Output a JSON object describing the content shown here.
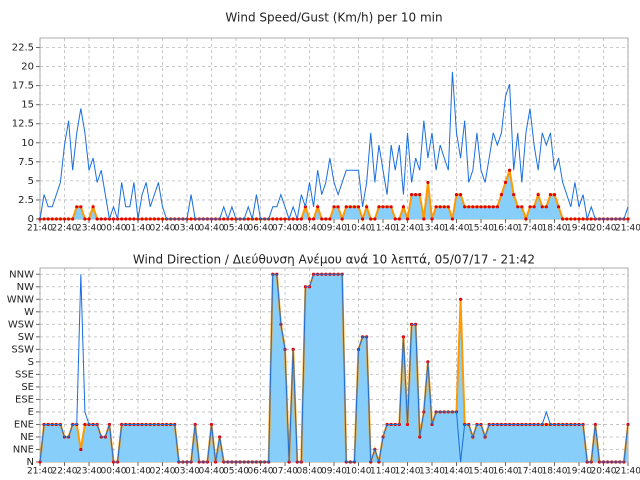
{
  "chart_data": [
    {
      "type": "line",
      "title": "Wind Speed/Gust (Km/h) per 10 min",
      "categories": [
        "21:40",
        null,
        null,
        null,
        null,
        null,
        "22:40",
        null,
        null,
        null,
        null,
        null,
        "23:40",
        null,
        null,
        null,
        null,
        null,
        "00:40",
        null,
        null,
        null,
        null,
        null,
        "01:40",
        null,
        null,
        null,
        null,
        null,
        "02:40",
        null,
        null,
        null,
        null,
        null,
        "03:40",
        null,
        null,
        null,
        null,
        null,
        "04:40",
        null,
        null,
        null,
        null,
        null,
        "05:40",
        null,
        null,
        null,
        null,
        null,
        "06:40",
        null,
        null,
        null,
        null,
        null,
        "07:40",
        null,
        null,
        null,
        null,
        null,
        "08:40",
        null,
        null,
        null,
        null,
        null,
        "09:40",
        null,
        null,
        null,
        null,
        null,
        "10:40",
        null,
        null,
        null,
        null,
        null,
        "11:40",
        null,
        null,
        null,
        null,
        null,
        "12:40",
        null,
        null,
        null,
        null,
        null,
        "13:40",
        null,
        null,
        null,
        null,
        null,
        "14:40",
        null,
        null,
        null,
        null,
        null,
        "15:40",
        null,
        null,
        null,
        null,
        null,
        "16:40",
        null,
        null,
        null,
        null,
        null,
        "17:40",
        null,
        null,
        null,
        null,
        null,
        "18:40",
        null,
        null,
        null,
        null,
        null,
        "19:40",
        null,
        null,
        null,
        null,
        null,
        "20:40",
        null,
        null,
        null,
        null,
        null,
        "21:40"
      ],
      "series": [
        {
          "color": "#ff9900",
          "fill_color": "#87cefa",
          "marker_color": "#e00000",
          "values": [
            0,
            0,
            0,
            0,
            0,
            0,
            0,
            0,
            0,
            1.6,
            1.6,
            0,
            0,
            1.6,
            0,
            0,
            0,
            0,
            0,
            0,
            0,
            0,
            0,
            0,
            0,
            0,
            0,
            0,
            0,
            0,
            0,
            0,
            0,
            0,
            0,
            0,
            0,
            0,
            0,
            0,
            0,
            0,
            0,
            0,
            0,
            0,
            0,
            0,
            0,
            0,
            0,
            0,
            0,
            0,
            0,
            0,
            0,
            0,
            0,
            0,
            0,
            0,
            0,
            0,
            0,
            1.6,
            0,
            0,
            1.6,
            0,
            0,
            0,
            1.6,
            1.6,
            0,
            1.6,
            1.6,
            1.6,
            1.6,
            0,
            1.6,
            0,
            0,
            1.6,
            1.6,
            1.6,
            1.6,
            0,
            0,
            1.6,
            0,
            3.2,
            3.2,
            3.2,
            0,
            4.8,
            0,
            1.6,
            1.6,
            1.6,
            1.6,
            0,
            3.2,
            3.2,
            1.6,
            1.6,
            1.6,
            1.6,
            1.6,
            1.6,
            1.6,
            1.6,
            1.6,
            3.2,
            4.8,
            6.4,
            3.2,
            1.6,
            1.6,
            0,
            1.6,
            1.6,
            3.2,
            1.6,
            1.6,
            3.2,
            3.2,
            1.6,
            0,
            0,
            0,
            0,
            0,
            0,
            0,
            0,
            0,
            0,
            0,
            0,
            0,
            0,
            0,
            0,
            0
          ]
        },
        {
          "color": "#1a6fdf",
          "values": [
            0,
            3.2,
            1.6,
            1.6,
            3.2,
            4.8,
            9.7,
            12.9,
            6.4,
            11.3,
            14.5,
            11.3,
            6.4,
            8,
            4.8,
            6.4,
            3.2,
            0,
            1.6,
            0,
            4.8,
            1.6,
            1.6,
            4.8,
            0,
            3.2,
            4.8,
            1.6,
            3.2,
            4.8,
            1.6,
            0,
            0,
            0,
            0,
            0,
            0,
            3.2,
            0,
            0,
            0,
            0,
            0,
            0,
            0,
            1.6,
            0,
            1.6,
            0,
            0,
            0,
            1.6,
            0,
            3.2,
            0,
            0,
            0,
            1.6,
            1.6,
            3.2,
            1.6,
            0,
            1.6,
            0,
            3.2,
            1.6,
            4.8,
            1.6,
            6.4,
            3.2,
            4.8,
            8,
            4.8,
            3.2,
            4.8,
            6.4,
            6.4,
            6.4,
            6.4,
            1.6,
            4.8,
            11.3,
            4.8,
            9.7,
            6.4,
            3.2,
            9.7,
            6.4,
            9.7,
            3.2,
            11.3,
            4.8,
            8,
            6.4,
            12.9,
            8,
            11.3,
            6.4,
            9.7,
            8,
            6.4,
            19.3,
            11.3,
            8,
            12.9,
            4.8,
            6.4,
            11.3,
            6.4,
            4.8,
            8,
            11.3,
            9.7,
            11.3,
            16.1,
            17.7,
            6.4,
            11.3,
            4.8,
            11.3,
            14.5,
            9.7,
            6.4,
            11.3,
            9.7,
            11.3,
            6.4,
            8,
            4.8,
            3.2,
            1.6,
            4.8,
            1.6,
            3.2,
            0,
            1.6,
            0,
            0,
            0,
            0,
            0,
            0,
            0,
            0,
            1.6
          ]
        }
      ],
      "ylim": [
        0,
        23.75
      ],
      "yticks": [
        0,
        2.5,
        5,
        7.5,
        10,
        12.5,
        15,
        17.5,
        20,
        22.5
      ],
      "grid": true
    },
    {
      "type": "line",
      "title": "Wind Direction / Διεύθυνση Ανέμου ανά 10 λεπτά,  05/07/17 - 21:42",
      "categories": [
        "21:40",
        null,
        null,
        null,
        null,
        null,
        "22:40",
        null,
        null,
        null,
        null,
        null,
        "23:40",
        null,
        null,
        null,
        null,
        null,
        "00:40",
        null,
        null,
        null,
        null,
        null,
        "01:40",
        null,
        null,
        null,
        null,
        null,
        "02:40",
        null,
        null,
        null,
        null,
        null,
        "03:40",
        null,
        null,
        null,
        null,
        null,
        "04:40",
        null,
        null,
        null,
        null,
        null,
        "05:40",
        null,
        null,
        null,
        null,
        null,
        "06:40",
        null,
        null,
        null,
        null,
        null,
        "07:40",
        null,
        null,
        null,
        null,
        null,
        "08:40",
        null,
        null,
        null,
        null,
        null,
        "09:40",
        null,
        null,
        null,
        null,
        null,
        "10:40",
        null,
        null,
        null,
        null,
        null,
        "11:40",
        null,
        null,
        null,
        null,
        null,
        "12:40",
        null,
        null,
        null,
        null,
        null,
        "13:40",
        null,
        null,
        null,
        null,
        null,
        "14:40",
        null,
        null,
        null,
        null,
        null,
        "15:40",
        null,
        null,
        null,
        null,
        null,
        "16:40",
        null,
        null,
        null,
        null,
        null,
        "17:40",
        null,
        null,
        null,
        null,
        null,
        "18:40",
        null,
        null,
        null,
        null,
        null,
        "19:40",
        null,
        null,
        null,
        null,
        null,
        "20:40",
        null,
        null,
        null,
        null,
        null,
        "21:40"
      ],
      "series": [
        {
          "color": "#ff9900",
          "fill_color": "#87cefa",
          "marker_color": "#e00000",
          "values": [
            0,
            3,
            3,
            3,
            3,
            3,
            2,
            2,
            3,
            3,
            1,
            3,
            3,
            3,
            3,
            2,
            2,
            3,
            0,
            0,
            3,
            3,
            3,
            3,
            3,
            3,
            3,
            3,
            3,
            3,
            3,
            3,
            3,
            3,
            0,
            0,
            0,
            0,
            3,
            0,
            0,
            0,
            3,
            0,
            2,
            0,
            0,
            0,
            0,
            0,
            0,
            0,
            0,
            0,
            0,
            0,
            0,
            15,
            15,
            11,
            9,
            0,
            9,
            0,
            0,
            14,
            14,
            15,
            15,
            15,
            15,
            15,
            15,
            15,
            15,
            0,
            0,
            0,
            9,
            10,
            10,
            0,
            1,
            0,
            2,
            3,
            3,
            3,
            3,
            10,
            3,
            11,
            11,
            2,
            4,
            8,
            3,
            4,
            4,
            4,
            4,
            4,
            4,
            13,
            3,
            3,
            2,
            3,
            3,
            2,
            3,
            3,
            3,
            3,
            3,
            3,
            3,
            3,
            3,
            3,
            3,
            3,
            3,
            3,
            3,
            3,
            3,
            3,
            3,
            3,
            3,
            3,
            3,
            3,
            0,
            0,
            3,
            0,
            0,
            0,
            0,
            0,
            0,
            0,
            3
          ]
        },
        {
          "color": "#1a6fdf",
          "values": [
            0,
            3,
            3,
            3,
            3,
            3,
            2,
            2,
            3,
            3,
            15,
            4,
            3,
            3,
            3,
            2,
            2,
            3,
            0,
            0,
            3,
            3,
            3,
            3,
            3,
            3,
            3,
            3,
            3,
            3,
            3,
            3,
            3,
            3,
            0,
            0,
            0,
            0,
            3,
            0,
            0,
            0,
            3,
            0,
            2,
            0,
            0,
            0,
            0,
            0,
            0,
            0,
            0,
            0,
            0,
            0,
            0,
            15,
            15,
            11,
            9,
            0,
            9,
            0,
            0,
            14,
            14,
            15,
            15,
            15,
            15,
            15,
            15,
            15,
            15,
            0,
            0,
            0,
            9,
            10,
            10,
            0,
            1,
            0,
            2,
            3,
            3,
            3,
            3,
            10,
            3,
            11,
            11,
            2,
            4,
            8,
            3,
            4,
            4,
            4,
            4,
            4,
            4,
            0,
            3,
            3,
            2,
            3,
            3,
            2,
            3,
            3,
            3,
            3,
            3,
            3,
            3,
            3,
            3,
            3,
            3,
            3,
            3,
            3,
            4,
            3,
            3,
            3,
            3,
            3,
            3,
            3,
            3,
            3,
            0,
            0,
            3,
            0,
            0,
            0,
            0,
            0,
            0,
            0,
            3
          ]
        }
      ],
      "ylim": [
        0,
        15.5
      ],
      "yticks": [
        {
          "value": 0,
          "label": "N"
        },
        {
          "value": 1,
          "label": "NNE"
        },
        {
          "value": 2,
          "label": "NE"
        },
        {
          "value": 3,
          "label": "ENE"
        },
        {
          "value": 4,
          "label": "E"
        },
        {
          "value": 5,
          "label": "ESE"
        },
        {
          "value": 6,
          "label": "SE"
        },
        {
          "value": 7,
          "label": "SSE"
        },
        {
          "value": 8,
          "label": "S"
        },
        {
          "value": 9,
          "label": "SSW"
        },
        {
          "value": 10,
          "label": "SW"
        },
        {
          "value": 11,
          "label": "WSW"
        },
        {
          "value": 12,
          "label": "W"
        },
        {
          "value": 13,
          "label": "WNW"
        },
        {
          "value": 14,
          "label": "NW"
        },
        {
          "value": 15,
          "label": "NNW"
        }
      ],
      "grid": true
    }
  ]
}
